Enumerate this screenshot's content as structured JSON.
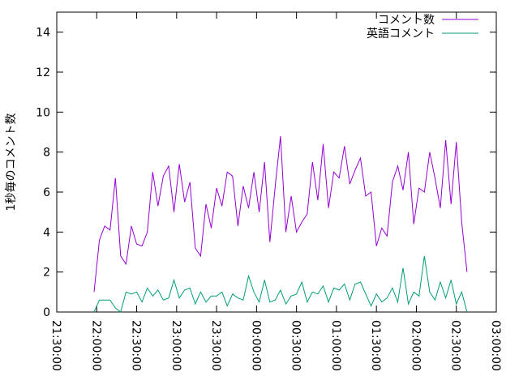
{
  "chart_data": {
    "type": "line",
    "y_label": "1秒毎のコメント数",
    "x": [
      "21:58:00",
      "22:02:00",
      "22:06:00",
      "22:10:00",
      "22:14:00",
      "22:18:00",
      "22:22:00",
      "22:26:00",
      "22:30:00",
      "22:34:00",
      "22:38:00",
      "22:42:00",
      "22:46:00",
      "22:50:00",
      "22:54:00",
      "22:58:00",
      "23:02:00",
      "23:06:00",
      "23:10:00",
      "23:14:00",
      "23:18:00",
      "23:22:00",
      "23:26:00",
      "23:30:00",
      "23:34:00",
      "23:38:00",
      "23:42:00",
      "23:46:00",
      "23:50:00",
      "23:54:00",
      "23:58:00",
      "00:02:00",
      "00:06:00",
      "00:10:00",
      "00:14:00",
      "00:18:00",
      "00:22:00",
      "00:26:00",
      "00:30:00",
      "00:34:00",
      "00:38:00",
      "00:42:00",
      "00:46:00",
      "00:50:00",
      "00:54:00",
      "00:58:00",
      "01:02:00",
      "01:06:00",
      "01:10:00",
      "01:14:00",
      "01:18:00",
      "01:22:00",
      "01:26:00",
      "01:30:00",
      "01:34:00",
      "01:38:00",
      "01:42:00",
      "01:46:00",
      "01:50:00",
      "01:54:00",
      "01:58:00",
      "02:02:00",
      "02:06:00",
      "02:10:00",
      "02:14:00",
      "02:18:00",
      "02:22:00",
      "02:26:00",
      "02:30:00",
      "02:34:00",
      "02:38:00"
    ],
    "series": [
      {
        "name": "コメント数",
        "color": "#9400d3",
        "values": [
          1.0,
          3.6,
          4.3,
          4.1,
          6.7,
          2.8,
          2.4,
          4.3,
          3.4,
          3.3,
          4.0,
          7.0,
          5.3,
          6.8,
          7.3,
          5.0,
          7.4,
          5.5,
          6.5,
          3.2,
          2.8,
          5.4,
          4.2,
          6.2,
          5.3,
          7.0,
          6.8,
          4.3,
          6.3,
          5.2,
          7.0,
          5.0,
          7.5,
          3.5,
          6.3,
          8.8,
          4.0,
          5.8,
          4.0,
          4.5,
          4.9,
          7.5,
          5.6,
          8.4,
          5.2,
          7.0,
          6.7,
          8.3,
          6.4,
          7.1,
          7.7,
          5.8,
          6.0,
          3.3,
          4.2,
          3.8,
          6.5,
          7.3,
          6.1,
          8.0,
          4.4,
          6.2,
          6.0,
          8.0,
          6.7,
          5.2,
          8.6,
          5.4,
          8.5,
          4.5,
          2.0
        ]
      },
      {
        "name": "英語コメント",
        "color": "#009e73",
        "values": [
          0,
          0.6,
          0.6,
          0.6,
          0.2,
          0,
          1.0,
          0.9,
          1.0,
          0.5,
          1.2,
          0.8,
          1.1,
          0.6,
          0.7,
          1.6,
          0.7,
          1.1,
          1.2,
          0.4,
          1.0,
          0.5,
          0.8,
          0.8,
          1.0,
          0.3,
          0.9,
          0.7,
          0.6,
          1.8,
          1.0,
          0.5,
          1.6,
          0.5,
          0.6,
          1.1,
          0.4,
          0.8,
          0.9,
          1.5,
          0.5,
          1.0,
          0.9,
          1.3,
          0.5,
          1.2,
          1.1,
          1.4,
          0.6,
          1.4,
          1.5,
          0.9,
          0.3,
          0.9,
          0.5,
          0.7,
          1.2,
          0.5,
          2.2,
          0.4,
          1.0,
          0.8,
          2.8,
          1.0,
          0.6,
          1.5,
          0.7,
          1.6,
          0.4,
          1.0,
          0
        ]
      }
    ],
    "xlim": [
      "21:30:00",
      "03:00:00"
    ],
    "xticks": [
      "21:30:00",
      "22:00:00",
      "22:30:00",
      "23:00:00",
      "23:30:00",
      "00:00:00",
      "00:30:00",
      "01:00:00",
      "01:30:00",
      "02:00:00",
      "02:30:00",
      "03:00:00"
    ],
    "ylim": [
      0,
      15
    ],
    "yticks": [
      0,
      2,
      4,
      6,
      8,
      10,
      12,
      14
    ],
    "legend": "top-right"
  }
}
